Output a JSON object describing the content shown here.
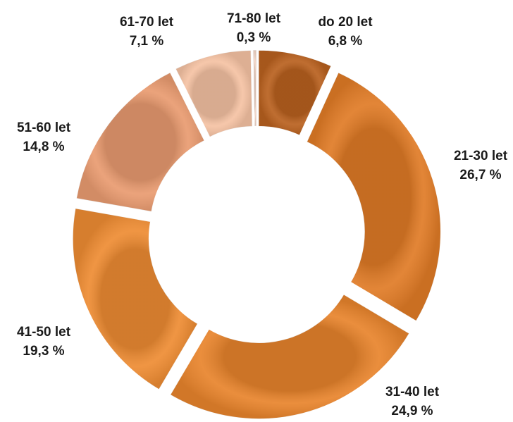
{
  "chart_data": {
    "type": "doughnut",
    "categories": [
      "do 20 let",
      "21-30 let",
      "31-40 let",
      "41-50 let",
      "51-60 let",
      "61-70 let",
      "71-80 let"
    ],
    "values": [
      6.8,
      26.7,
      24.9,
      19.3,
      14.8,
      7.1,
      0.3
    ],
    "value_labels": [
      "6,8 %",
      "26,7 %",
      "24,9 %",
      "19,3 %",
      "14,8 %",
      "7,1 %",
      "0,3 %"
    ],
    "colors": [
      "#b9611f",
      "#e07b26",
      "#e8842c",
      "#ee8c33",
      "#e99b70",
      "#f5c2a3",
      "#f6d9c9"
    ]
  }
}
